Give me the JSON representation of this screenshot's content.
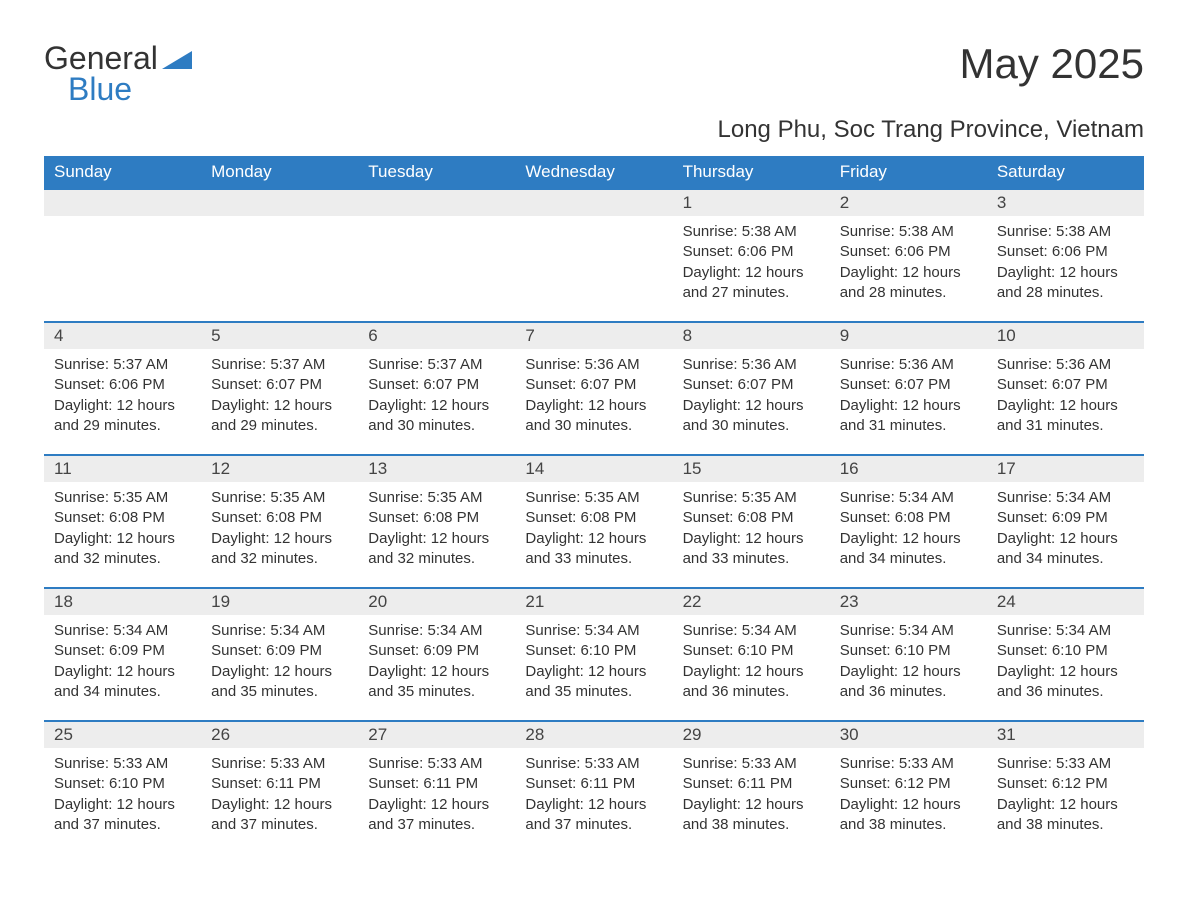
{
  "logo": {
    "text1": "General",
    "text2": "Blue",
    "accent_color": "#2e7cc2"
  },
  "title": "May 2025",
  "location": "Long Phu, Soc Trang Province, Vietnam",
  "colors": {
    "header_bg": "#2e7cc2",
    "header_text": "#ffffff",
    "daynum_bg": "#ededed",
    "text": "#333333",
    "row_border": "#2e7cc2"
  },
  "font": {
    "family": "Arial",
    "th_size": 17,
    "title_size": 42,
    "location_size": 24,
    "body_size": 15
  },
  "daynames": [
    "Sunday",
    "Monday",
    "Tuesday",
    "Wednesday",
    "Thursday",
    "Friday",
    "Saturday"
  ],
  "weeks": [
    [
      null,
      null,
      null,
      null,
      {
        "n": "1",
        "sunrise": "Sunrise: 5:38 AM",
        "sunset": "Sunset: 6:06 PM",
        "day1": "Daylight: 12 hours",
        "day2": "and 27 minutes."
      },
      {
        "n": "2",
        "sunrise": "Sunrise: 5:38 AM",
        "sunset": "Sunset: 6:06 PM",
        "day1": "Daylight: 12 hours",
        "day2": "and 28 minutes."
      },
      {
        "n": "3",
        "sunrise": "Sunrise: 5:38 AM",
        "sunset": "Sunset: 6:06 PM",
        "day1": "Daylight: 12 hours",
        "day2": "and 28 minutes."
      }
    ],
    [
      {
        "n": "4",
        "sunrise": "Sunrise: 5:37 AM",
        "sunset": "Sunset: 6:06 PM",
        "day1": "Daylight: 12 hours",
        "day2": "and 29 minutes."
      },
      {
        "n": "5",
        "sunrise": "Sunrise: 5:37 AM",
        "sunset": "Sunset: 6:07 PM",
        "day1": "Daylight: 12 hours",
        "day2": "and 29 minutes."
      },
      {
        "n": "6",
        "sunrise": "Sunrise: 5:37 AM",
        "sunset": "Sunset: 6:07 PM",
        "day1": "Daylight: 12 hours",
        "day2": "and 30 minutes."
      },
      {
        "n": "7",
        "sunrise": "Sunrise: 5:36 AM",
        "sunset": "Sunset: 6:07 PM",
        "day1": "Daylight: 12 hours",
        "day2": "and 30 minutes."
      },
      {
        "n": "8",
        "sunrise": "Sunrise: 5:36 AM",
        "sunset": "Sunset: 6:07 PM",
        "day1": "Daylight: 12 hours",
        "day2": "and 30 minutes."
      },
      {
        "n": "9",
        "sunrise": "Sunrise: 5:36 AM",
        "sunset": "Sunset: 6:07 PM",
        "day1": "Daylight: 12 hours",
        "day2": "and 31 minutes."
      },
      {
        "n": "10",
        "sunrise": "Sunrise: 5:36 AM",
        "sunset": "Sunset: 6:07 PM",
        "day1": "Daylight: 12 hours",
        "day2": "and 31 minutes."
      }
    ],
    [
      {
        "n": "11",
        "sunrise": "Sunrise: 5:35 AM",
        "sunset": "Sunset: 6:08 PM",
        "day1": "Daylight: 12 hours",
        "day2": "and 32 minutes."
      },
      {
        "n": "12",
        "sunrise": "Sunrise: 5:35 AM",
        "sunset": "Sunset: 6:08 PM",
        "day1": "Daylight: 12 hours",
        "day2": "and 32 minutes."
      },
      {
        "n": "13",
        "sunrise": "Sunrise: 5:35 AM",
        "sunset": "Sunset: 6:08 PM",
        "day1": "Daylight: 12 hours",
        "day2": "and 32 minutes."
      },
      {
        "n": "14",
        "sunrise": "Sunrise: 5:35 AM",
        "sunset": "Sunset: 6:08 PM",
        "day1": "Daylight: 12 hours",
        "day2": "and 33 minutes."
      },
      {
        "n": "15",
        "sunrise": "Sunrise: 5:35 AM",
        "sunset": "Sunset: 6:08 PM",
        "day1": "Daylight: 12 hours",
        "day2": "and 33 minutes."
      },
      {
        "n": "16",
        "sunrise": "Sunrise: 5:34 AM",
        "sunset": "Sunset: 6:08 PM",
        "day1": "Daylight: 12 hours",
        "day2": "and 34 minutes."
      },
      {
        "n": "17",
        "sunrise": "Sunrise: 5:34 AM",
        "sunset": "Sunset: 6:09 PM",
        "day1": "Daylight: 12 hours",
        "day2": "and 34 minutes."
      }
    ],
    [
      {
        "n": "18",
        "sunrise": "Sunrise: 5:34 AM",
        "sunset": "Sunset: 6:09 PM",
        "day1": "Daylight: 12 hours",
        "day2": "and 34 minutes."
      },
      {
        "n": "19",
        "sunrise": "Sunrise: 5:34 AM",
        "sunset": "Sunset: 6:09 PM",
        "day1": "Daylight: 12 hours",
        "day2": "and 35 minutes."
      },
      {
        "n": "20",
        "sunrise": "Sunrise: 5:34 AM",
        "sunset": "Sunset: 6:09 PM",
        "day1": "Daylight: 12 hours",
        "day2": "and 35 minutes."
      },
      {
        "n": "21",
        "sunrise": "Sunrise: 5:34 AM",
        "sunset": "Sunset: 6:10 PM",
        "day1": "Daylight: 12 hours",
        "day2": "and 35 minutes."
      },
      {
        "n": "22",
        "sunrise": "Sunrise: 5:34 AM",
        "sunset": "Sunset: 6:10 PM",
        "day1": "Daylight: 12 hours",
        "day2": "and 36 minutes."
      },
      {
        "n": "23",
        "sunrise": "Sunrise: 5:34 AM",
        "sunset": "Sunset: 6:10 PM",
        "day1": "Daylight: 12 hours",
        "day2": "and 36 minutes."
      },
      {
        "n": "24",
        "sunrise": "Sunrise: 5:34 AM",
        "sunset": "Sunset: 6:10 PM",
        "day1": "Daylight: 12 hours",
        "day2": "and 36 minutes."
      }
    ],
    [
      {
        "n": "25",
        "sunrise": "Sunrise: 5:33 AM",
        "sunset": "Sunset: 6:10 PM",
        "day1": "Daylight: 12 hours",
        "day2": "and 37 minutes."
      },
      {
        "n": "26",
        "sunrise": "Sunrise: 5:33 AM",
        "sunset": "Sunset: 6:11 PM",
        "day1": "Daylight: 12 hours",
        "day2": "and 37 minutes."
      },
      {
        "n": "27",
        "sunrise": "Sunrise: 5:33 AM",
        "sunset": "Sunset: 6:11 PM",
        "day1": "Daylight: 12 hours",
        "day2": "and 37 minutes."
      },
      {
        "n": "28",
        "sunrise": "Sunrise: 5:33 AM",
        "sunset": "Sunset: 6:11 PM",
        "day1": "Daylight: 12 hours",
        "day2": "and 37 minutes."
      },
      {
        "n": "29",
        "sunrise": "Sunrise: 5:33 AM",
        "sunset": "Sunset: 6:11 PM",
        "day1": "Daylight: 12 hours",
        "day2": "and 38 minutes."
      },
      {
        "n": "30",
        "sunrise": "Sunrise: 5:33 AM",
        "sunset": "Sunset: 6:12 PM",
        "day1": "Daylight: 12 hours",
        "day2": "and 38 minutes."
      },
      {
        "n": "31",
        "sunrise": "Sunrise: 5:33 AM",
        "sunset": "Sunset: 6:12 PM",
        "day1": "Daylight: 12 hours",
        "day2": "and 38 minutes."
      }
    ]
  ]
}
